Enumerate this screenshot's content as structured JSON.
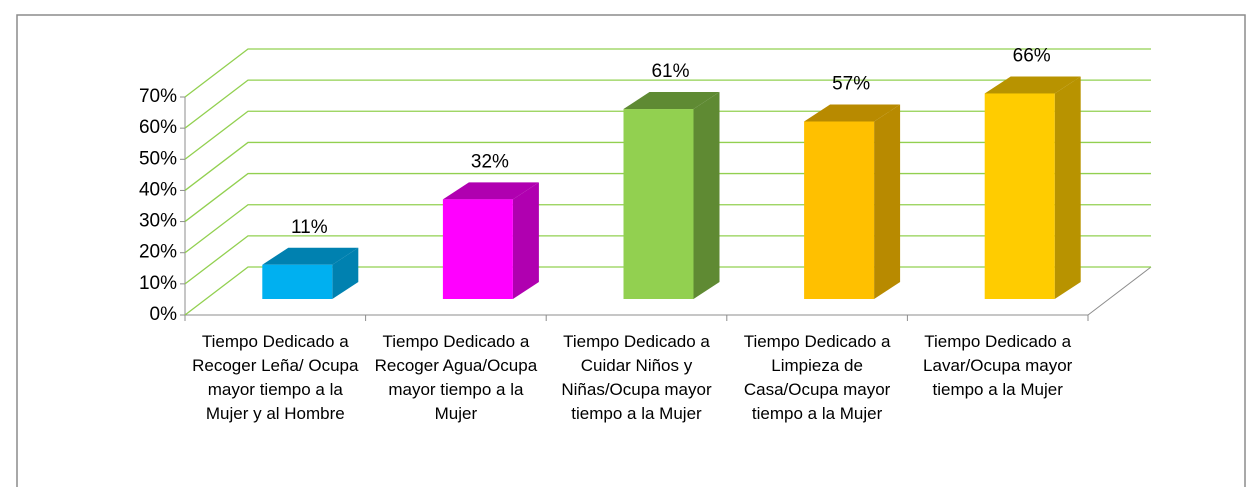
{
  "chart_data": {
    "type": "bar3d",
    "categories": [
      "Tiempo Dedicado a Recoger Leña/ Ocupa mayor tiempo a la Mujer y al Hombre",
      "Tiempo Dedicado a Recoger Agua/Ocupa mayor tiempo a la Mujer",
      "Tiempo Dedicado a Cuidar Niños y Niñas/Ocupa mayor tiempo a la Mujer",
      "Tiempo Dedicado a Limpieza de Casa/Ocupa mayor tiempo a la Mujer",
      "Tiempo Dedicado a Lavar/Ocupa mayor tiempo a la Mujer"
    ],
    "values": [
      11,
      32,
      61,
      57,
      66
    ],
    "value_labels": [
      "11%",
      "32%",
      "61%",
      "57%",
      "66%"
    ],
    "colors": [
      "#00b0f0",
      "#ff00ff",
      "#92d050",
      "#ffc000",
      "#ffcc00"
    ],
    "side_colors": [
      "#0081b0",
      "#b000b0",
      "#5f8a33",
      "#b88a00",
      "#b89300"
    ],
    "ylim": [
      0,
      70
    ],
    "yticks": [
      {
        "value": 0,
        "label": "0%"
      },
      {
        "value": 10,
        "label": "10%"
      },
      {
        "value": 20,
        "label": "20%"
      },
      {
        "value": 30,
        "label": "30%"
      },
      {
        "value": 40,
        "label": "40%"
      },
      {
        "value": 50,
        "label": "50%"
      },
      {
        "value": 60,
        "label": "60%"
      },
      {
        "value": 70,
        "label": "70%"
      }
    ],
    "grid": true,
    "grid_color": "#92d050"
  }
}
